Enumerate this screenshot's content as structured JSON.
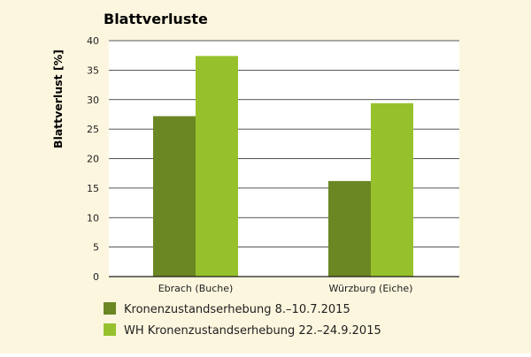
{
  "colors": {
    "background": "#FDF6DF",
    "plot_background": "#FFFFFF",
    "series_dark": "#6B8723",
    "series_light": "#96C12C",
    "text": "#1E1E1E",
    "grid": "#1E1E1E"
  },
  "chart_data": {
    "type": "bar",
    "title": "Blattverluste",
    "xlabel": "",
    "ylabel": "Blattverlust [%]",
    "ylim": [
      0,
      40
    ],
    "yticks": [
      0,
      5,
      10,
      15,
      20,
      25,
      30,
      35,
      40
    ],
    "grid": true,
    "legend_position": "bottom-left",
    "categories": [
      "Ebrach (Buche)",
      "Würzburg (Eiche)"
    ],
    "series": [
      {
        "name": "Kronenzustandserhebung 8.–10.7.2015",
        "values": [
          27.2,
          16.2
        ],
        "color": "#6B8723"
      },
      {
        "name": "WH Kronenzustandserhebung 22.–24.9.2015",
        "values": [
          37.4,
          29.4
        ],
        "color": "#96C12C"
      }
    ]
  }
}
